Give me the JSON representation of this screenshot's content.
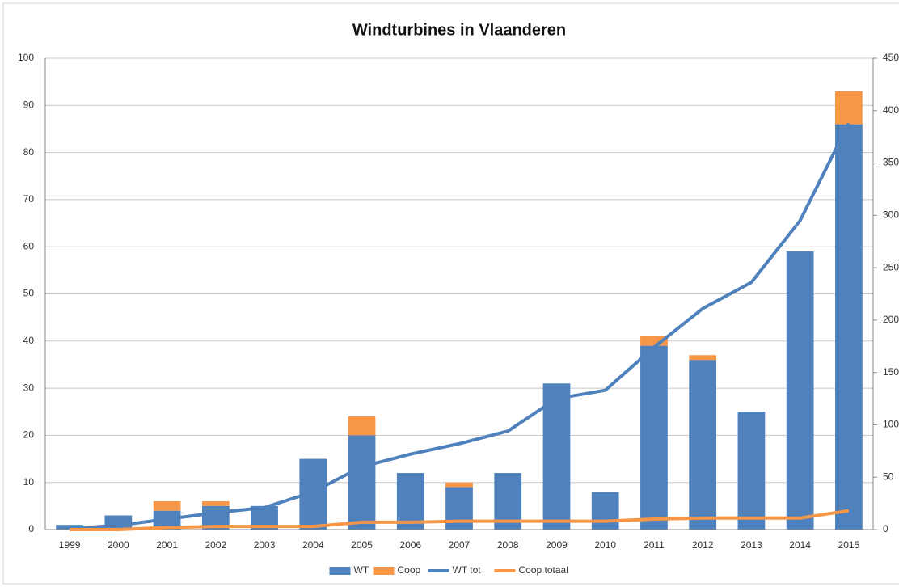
{
  "chart_data": {
    "type": "combo",
    "title": "Windturbines in Vlaanderen",
    "categories": [
      "1999",
      "2000",
      "2001",
      "2002",
      "2003",
      "2004",
      "2005",
      "2006",
      "2007",
      "2008",
      "2009",
      "2010",
      "2011",
      "2012",
      "2013",
      "2014",
      "2015"
    ],
    "series": [
      {
        "name": "WT",
        "type": "bar",
        "color": "#4f81bd",
        "values": [
          1,
          3,
          4,
          5,
          5,
          15,
          20,
          12,
          9,
          12,
          31,
          8,
          39,
          36,
          25,
          59,
          86
        ]
      },
      {
        "name": "Coop",
        "type": "bar",
        "color": "#f79646",
        "values": [
          0,
          0,
          2,
          1,
          0,
          0,
          4,
          0,
          1,
          0,
          0,
          0,
          2,
          1,
          0,
          0,
          7
        ]
      },
      {
        "name": "WT tot",
        "type": "line",
        "axis": "y2",
        "color": "#4f81bd",
        "values": [
          1,
          4,
          10,
          16,
          21,
          36,
          60,
          72,
          82,
          94,
          125,
          133,
          174,
          211,
          236,
          295,
          388
        ]
      },
      {
        "name": "Coop totaal",
        "type": "line",
        "axis": "y2",
        "color": "#f79646",
        "values": [
          0,
          0,
          2,
          3,
          3,
          3,
          7,
          7,
          8,
          8,
          8,
          8,
          10,
          11,
          11,
          11,
          18
        ]
      }
    ],
    "ylim": [
      0,
      100
    ],
    "yticks": [
      0,
      10,
      20,
      30,
      40,
      50,
      60,
      70,
      80,
      90,
      100
    ],
    "y2lim": [
      0,
      450
    ],
    "y2ticks": [
      0,
      50,
      100,
      150,
      200,
      250,
      300,
      350,
      400,
      450
    ],
    "grid": true,
    "stacked": true,
    "legend": "bottom"
  }
}
